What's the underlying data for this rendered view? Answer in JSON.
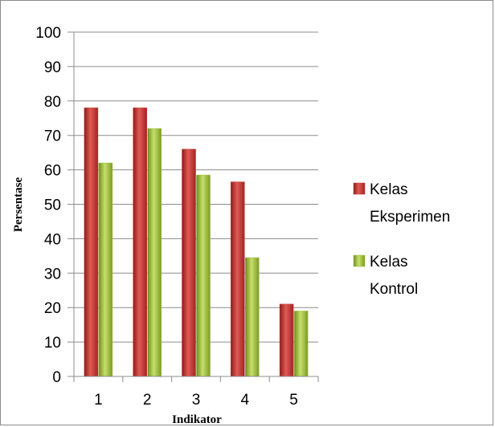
{
  "chart_data": {
    "type": "bar",
    "categories": [
      "1",
      "2",
      "3",
      "4",
      "5"
    ],
    "series": [
      {
        "name": "Kelas Eksperimen",
        "name_lines": [
          "Kelas",
          "Eksperimen"
        ],
        "color": "#c0302f",
        "values": [
          78,
          78,
          66,
          56.5,
          21
        ]
      },
      {
        "name": "Kelas Kontrol",
        "name_lines": [
          "Kelas",
          "Kontrol"
        ],
        "color": "#9bbb3b",
        "values": [
          62,
          72,
          58.5,
          34.5,
          19
        ]
      }
    ],
    "ylim": [
      0,
      100
    ],
    "yticks": [
      "0",
      "10",
      "20",
      "30",
      "40",
      "50",
      "60",
      "70",
      "80",
      "90",
      "100"
    ],
    "xlabel": "Indikator",
    "ylabel": "Persentase",
    "grid": true,
    "legend_position": "right"
  }
}
